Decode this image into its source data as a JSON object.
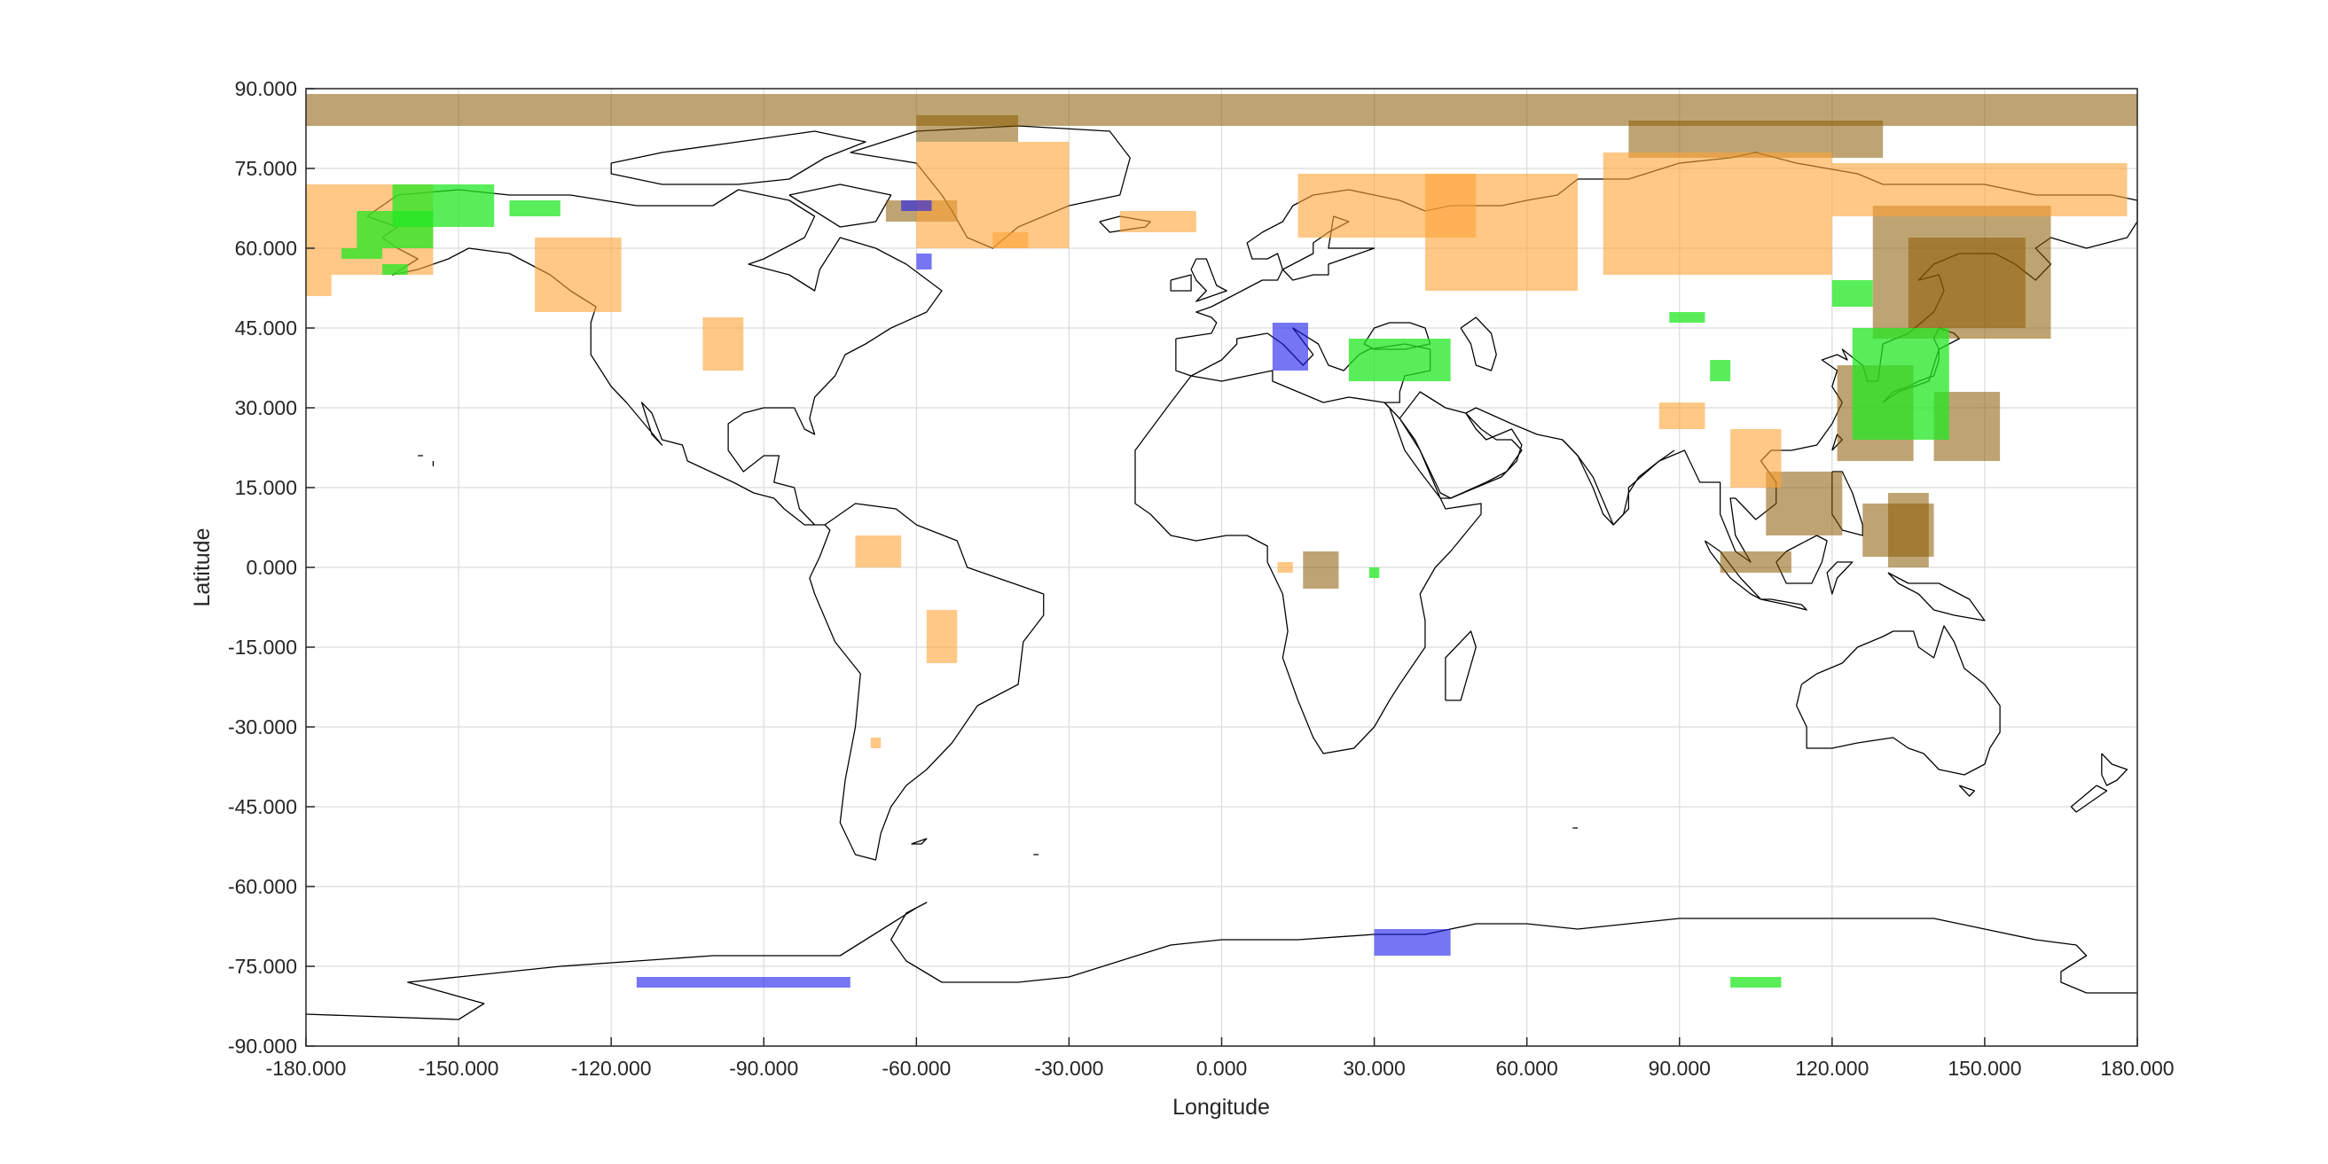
{
  "axes": {
    "xlabel": "Longitude",
    "ylabel": "Latitude",
    "xlim": [
      -180,
      180
    ],
    "ylim": [
      -90,
      90
    ],
    "xticks": [
      -180,
      -150,
      -120,
      -90,
      -60,
      -30,
      0,
      30,
      60,
      90,
      120,
      150,
      180
    ],
    "yticks": [
      90,
      75,
      60,
      45,
      30,
      15,
      0,
      -15,
      -30,
      -45,
      -60,
      -75,
      -90
    ],
    "xtick_labels": [
      "-180.000",
      "-150.000",
      "-120.000",
      "-90.000",
      "-60.000",
      "-30.000",
      "0.000",
      "30.000",
      "60.000",
      "90.000",
      "120.000",
      "150.000",
      "180.000"
    ],
    "ytick_labels": [
      "90.000",
      "75.000",
      "60.000",
      "45.000",
      "30.000",
      "15.000",
      "0.000",
      "-15.000",
      "-30.000",
      "-45.000",
      "-60.000",
      "-75.000",
      "-90.000"
    ],
    "grid": true
  },
  "colors": {
    "brown": "#8b5a00",
    "orange": "#ffa436",
    "green": "#22e822",
    "blue": "#1a1aee",
    "coast": "#000000",
    "grid": "#dcdcdc",
    "frame": "#262626"
  },
  "chart_data": {
    "type": "map-footprints",
    "xlabel": "Longitude",
    "ylabel": "Latitude",
    "xlim": [
      -180,
      180
    ],
    "ylim": [
      -90,
      90
    ],
    "grid": true,
    "footprint_layers": [
      {
        "color": "brown",
        "opacity": 0.55,
        "regions": [
          {
            "lon": [
              -180,
              180
            ],
            "lat": [
              83,
              89
            ]
          },
          {
            "lon": [
              -60,
              -40
            ],
            "lat": [
              80,
              85
            ]
          },
          {
            "lon": [
              80,
              130
            ],
            "lat": [
              77,
              84
            ]
          },
          {
            "lon": [
              -66,
              -52
            ],
            "lat": [
              65,
              69
            ]
          },
          {
            "lon": [
              128,
              163
            ],
            "lat": [
              43,
              68
            ]
          },
          {
            "lon": [
              135,
              158
            ],
            "lat": [
              45,
              62
            ]
          },
          {
            "lon": [
              121,
              136
            ],
            "lat": [
              20,
              38
            ]
          },
          {
            "lon": [
              140,
              153
            ],
            "lat": [
              20,
              33
            ]
          },
          {
            "lon": [
              131,
              139
            ],
            "lat": [
              0,
              14
            ]
          },
          {
            "lon": [
              126,
              140
            ],
            "lat": [
              2,
              12
            ]
          },
          {
            "lon": [
              107,
              122
            ],
            "lat": [
              6,
              18
            ]
          },
          {
            "lon": [
              98,
              112
            ],
            "lat": [
              -1,
              3
            ]
          },
          {
            "lon": [
              16,
              23
            ],
            "lat": [
              -4,
              3
            ]
          }
        ]
      },
      {
        "color": "orange",
        "opacity": 0.6,
        "regions": [
          {
            "lon": [
              -180,
              -175
            ],
            "lat": [
              51,
              72
            ]
          },
          {
            "lon": [
              -175,
              -155
            ],
            "lat": [
              55,
              72
            ]
          },
          {
            "lon": [
              -135,
              -118
            ],
            "lat": [
              48,
              62
            ]
          },
          {
            "lon": [
              -102,
              -94
            ],
            "lat": [
              37,
              47
            ]
          },
          {
            "lon": [
              -60,
              -30
            ],
            "lat": [
              60,
              80
            ]
          },
          {
            "lon": [
              -20,
              -5
            ],
            "lat": [
              63,
              67
            ]
          },
          {
            "lon": [
              -45,
              -38
            ],
            "lat": [
              60,
              63
            ]
          },
          {
            "lon": [
              15,
              50
            ],
            "lat": [
              62,
              74
            ]
          },
          {
            "lon": [
              40,
              70
            ],
            "lat": [
              52,
              74
            ]
          },
          {
            "lon": [
              75,
              120
            ],
            "lat": [
              55,
              78
            ]
          },
          {
            "lon": [
              120,
              178
            ],
            "lat": [
              66,
              76
            ]
          },
          {
            "lon": [
              86,
              95
            ],
            "lat": [
              26,
              31
            ]
          },
          {
            "lon": [
              100,
              110
            ],
            "lat": [
              15,
              26
            ]
          },
          {
            "lon": [
              -72,
              -63
            ],
            "lat": [
              0,
              6
            ]
          },
          {
            "lon": [
              -58,
              -52
            ],
            "lat": [
              -18,
              -8
            ]
          },
          {
            "lon": [
              11,
              14
            ],
            "lat": [
              -1,
              1
            ]
          },
          {
            "lon": [
              -69,
              -67
            ],
            "lat": [
              -34,
              -32
            ]
          }
        ]
      },
      {
        "color": "green",
        "opacity": 0.75,
        "regions": [
          {
            "lon": [
              -163,
              -143
            ],
            "lat": [
              64,
              72
            ]
          },
          {
            "lon": [
              -170,
              -155
            ],
            "lat": [
              60,
              67
            ]
          },
          {
            "lon": [
              -140,
              -130
            ],
            "lat": [
              66,
              69
            ]
          },
          {
            "lon": [
              -173,
              -165
            ],
            "lat": [
              58,
              60
            ]
          },
          {
            "lon": [
              -165,
              -160
            ],
            "lat": [
              55,
              57
            ]
          },
          {
            "lon": [
              25,
              45
            ],
            "lat": [
              35,
              43
            ]
          },
          {
            "lon": [
              88,
              95
            ],
            "lat": [
              46,
              48
            ]
          },
          {
            "lon": [
              96,
              100
            ],
            "lat": [
              35,
              39
            ]
          },
          {
            "lon": [
              120,
              128
            ],
            "lat": [
              49,
              54
            ]
          },
          {
            "lon": [
              124,
              143
            ],
            "lat": [
              24,
              45
            ]
          },
          {
            "lon": [
              29,
              31
            ],
            "lat": [
              -2,
              0
            ]
          },
          {
            "lon": [
              100,
              110
            ],
            "lat": [
              -79,
              -77
            ]
          }
        ]
      },
      {
        "color": "blue",
        "opacity": 0.6,
        "regions": [
          {
            "lon": [
              -63,
              -57
            ],
            "lat": [
              67,
              69
            ]
          },
          {
            "lon": [
              -60,
              -57
            ],
            "lat": [
              56,
              59
            ]
          },
          {
            "lon": [
              10,
              17
            ],
            "lat": [
              37,
              46
            ]
          },
          {
            "lon": [
              30,
              45
            ],
            "lat": [
              -73,
              -68
            ]
          },
          {
            "lon": [
              -115,
              -73
            ],
            "lat": [
              -79,
              -77
            ]
          }
        ]
      }
    ]
  }
}
